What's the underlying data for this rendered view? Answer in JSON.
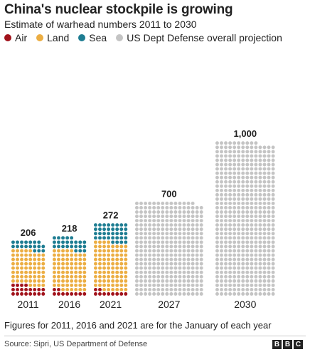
{
  "title": "China's nuclear stockpile is growing",
  "subtitle": "Estimate of warhead numbers 2011 to 2030",
  "colors": {
    "air": "#a1121b",
    "land": "#ecae43",
    "sea": "#1e7d92",
    "projection": "#c4c4c4"
  },
  "legend": [
    {
      "label": "Air",
      "color": "#a1121b"
    },
    {
      "label": "Land",
      "color": "#ecae43"
    },
    {
      "label": "Sea",
      "color": "#1e7d92"
    },
    {
      "label": "US Dept Defense overall projection",
      "color": "#c4c4c4"
    }
  ],
  "chart_data": {
    "type": "bar",
    "title": "China's nuclear stockpile is growing",
    "subtitle": "Estimate of warhead numbers 2011 to 2030",
    "categories": [
      "2011",
      "2016",
      "2021",
      "2027",
      "2030"
    ],
    "totals": [
      206,
      218,
      272,
      700,
      1000
    ],
    "total_labels": [
      "206",
      "218",
      "272",
      "700",
      "1,000"
    ],
    "series": [
      {
        "name": "Air",
        "values": [
          40,
          20,
          20,
          0,
          0
        ]
      },
      {
        "name": "Land",
        "values": [
          130,
          150,
          180,
          0,
          0
        ]
      },
      {
        "name": "Sea",
        "values": [
          36,
          48,
          72,
          0,
          0
        ]
      },
      {
        "name": "US Dept Defense overall projection",
        "values": [
          0,
          0,
          0,
          700,
          1000
        ]
      }
    ],
    "legend_position": "top-left",
    "grid": false
  },
  "footnote": "Figures for 2011, 2016 and 2021 are for the January of each year",
  "source": "Source: Sipri, US Department of Defense",
  "logo": [
    "B",
    "B",
    "C"
  ]
}
